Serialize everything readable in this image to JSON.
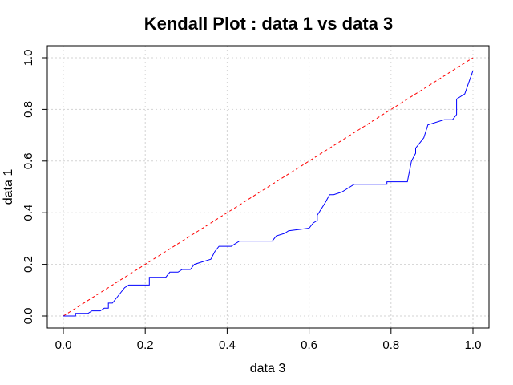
{
  "chart_data": {
    "type": "line",
    "title": "Kendall Plot : data 1 vs data 3",
    "xlabel": "data 3",
    "ylabel": "data 1",
    "xlim": [
      0.0,
      1.0
    ],
    "ylim": [
      0.0,
      1.0
    ],
    "x_ticks": [
      "0.0",
      "0.2",
      "0.4",
      "0.6",
      "0.8",
      "1.0"
    ],
    "y_ticks": [
      "0.0",
      "0.2",
      "0.4",
      "0.6",
      "0.8",
      "1.0"
    ],
    "grid": true,
    "series": [
      {
        "color": "#ff0000",
        "style": "dashed",
        "x": [
          0.0,
          1.0
        ],
        "y": [
          0.0,
          1.0
        ]
      },
      {
        "color": "#0000ff",
        "style": "step",
        "x": [
          0.0,
          0.03,
          0.03,
          0.06,
          0.07,
          0.09,
          0.1,
          0.11,
          0.11,
          0.12,
          0.13,
          0.14,
          0.15,
          0.16,
          0.21,
          0.21,
          0.25,
          0.26,
          0.28,
          0.29,
          0.31,
          0.32,
          0.34,
          0.36,
          0.37,
          0.38,
          0.38,
          0.41,
          0.43,
          0.51,
          0.52,
          0.54,
          0.55,
          0.6,
          0.61,
          0.62,
          0.62,
          0.64,
          0.65,
          0.66,
          0.68,
          0.7,
          0.71,
          0.79,
          0.79,
          0.84,
          0.85,
          0.86,
          0.86,
          0.87,
          0.88,
          0.89,
          0.93,
          0.95,
          0.96,
          0.96,
          0.98,
          1.0
        ],
        "y": [
          0.0,
          0.0,
          0.01,
          0.01,
          0.02,
          0.02,
          0.03,
          0.03,
          0.05,
          0.05,
          0.07,
          0.09,
          0.11,
          0.12,
          0.12,
          0.15,
          0.15,
          0.17,
          0.17,
          0.18,
          0.18,
          0.2,
          0.21,
          0.22,
          0.25,
          0.27,
          0.27,
          0.27,
          0.29,
          0.29,
          0.31,
          0.32,
          0.33,
          0.34,
          0.36,
          0.37,
          0.39,
          0.44,
          0.47,
          0.47,
          0.48,
          0.5,
          0.51,
          0.51,
          0.52,
          0.52,
          0.6,
          0.63,
          0.65,
          0.67,
          0.69,
          0.74,
          0.76,
          0.76,
          0.78,
          0.84,
          0.86,
          0.95
        ]
      }
    ]
  }
}
